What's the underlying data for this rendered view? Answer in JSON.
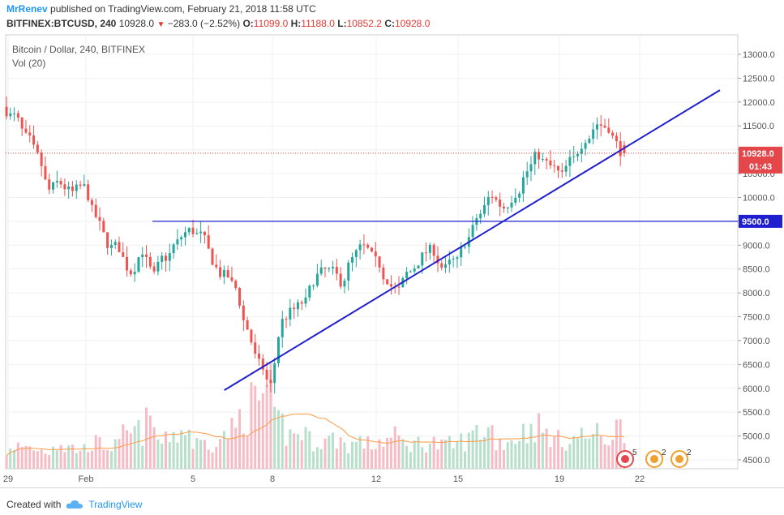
{
  "header": {
    "author": "MrRenev",
    "published_text": "published on TradingView.com, February 21, 2018 11:58 UTC",
    "symbol": "BITFINEX:BTCUSD, 240",
    "last": "10928.0",
    "change": "−283.0 (−2.52%)",
    "o_label": "O:",
    "o_value": "11099.0",
    "h_label": "H:",
    "h_value": "11188.0",
    "l_label": "L:",
    "l_value": "10852.2",
    "c_label": "C:",
    "c_value": "10928.0"
  },
  "footer": {
    "created_with": "Created with",
    "brand": "TradingView"
  },
  "colors": {
    "up": "#26a69a",
    "down": "#ef5350",
    "vol_up": "#b7dfcb",
    "vol_down": "#f6bcc6",
    "ma": "#ff9a45",
    "drawing": "#1f1fcf",
    "price_line": "#e53935"
  },
  "chart_data": {
    "type": "candlestick",
    "title": "Bitcoin / Dollar, 240, BITFINEX",
    "indicator_label": "Vol (20)",
    "x_ticks": [
      "29",
      "Feb",
      "5",
      "8",
      "12",
      "15",
      "19",
      "22"
    ],
    "y_ticks": [
      "13000.0",
      "12500.0",
      "12000.0",
      "11500.0",
      "11000.0",
      "10500.0",
      "10000.0",
      "9500.0",
      "9000.0",
      "8500.0",
      "8000.0",
      "7500.0",
      "7000.0",
      "6500.0",
      "6000.0",
      "5500.0",
      "5000.0",
      "4500.0"
    ],
    "ylim": [
      4300,
      13250
    ],
    "last_price_label": "10928.0",
    "countdown_label": "01:43",
    "horizontal_level_label": "9500.0",
    "horizontal_level": 9500,
    "trendline": {
      "start": {
        "date": "Feb 6",
        "price": 5960
      },
      "end": {
        "date": "Feb 25",
        "price": 12250
      }
    },
    "event_badges": [
      "5",
      "2",
      "2"
    ],
    "anchors": [
      [
        11700,
        1.2
      ],
      [
        11250,
        1.6
      ],
      [
        10850,
        1.5
      ],
      [
        10150,
        1.3
      ],
      [
        10300,
        1.8
      ],
      [
        10100,
        1.5
      ],
      [
        10200,
        1.4
      ],
      [
        9600,
        1.8
      ],
      [
        9050,
        1.7
      ],
      [
        8950,
        1.6
      ],
      [
        8450,
        2.4
      ],
      [
        8900,
        2.6
      ],
      [
        8350,
        3.2
      ],
      [
        8750,
        1.9
      ],
      [
        9050,
        2.5
      ],
      [
        9300,
        2.7
      ],
      [
        9200,
        1.8
      ],
      [
        8700,
        1.9
      ],
      [
        8350,
        2.2
      ],
      [
        8100,
        2.7
      ],
      [
        7250,
        3.8
      ],
      [
        6500,
        4.6
      ],
      [
        6050,
        5.4
      ],
      [
        7400,
        3.2
      ],
      [
        7650,
        2.4
      ],
      [
        7800,
        2.6
      ],
      [
        8350,
        2.0
      ],
      [
        8450,
        2.0
      ],
      [
        8250,
        2.1
      ],
      [
        8700,
        1.7
      ],
      [
        8950,
        1.9
      ],
      [
        8650,
        1.7
      ],
      [
        8300,
        2.0
      ],
      [
        8050,
        2.2
      ],
      [
        8450,
        1.8
      ],
      [
        8750,
        1.8
      ],
      [
        8900,
        1.9
      ],
      [
        8500,
        1.6
      ],
      [
        8650,
        1.7
      ],
      [
        9150,
        2.0
      ],
      [
        9650,
        2.6
      ],
      [
        10050,
        2.8
      ],
      [
        9800,
        1.9
      ],
      [
        10100,
        2.1
      ],
      [
        10550,
        2.6
      ],
      [
        10900,
        3.0
      ],
      [
        10650,
        2.5
      ],
      [
        10450,
        2.0
      ],
      [
        10800,
        2.1
      ],
      [
        11250,
        2.3
      ],
      [
        11550,
        2.4
      ],
      [
        11480,
        2.1
      ],
      [
        10930,
        2.9
      ]
    ],
    "volume_ma_period": 20
  }
}
